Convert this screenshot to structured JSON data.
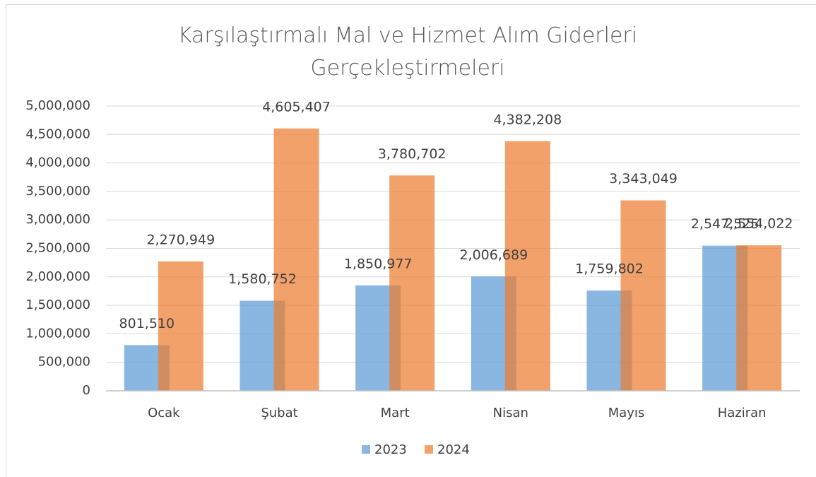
{
  "chart_data": {
    "type": "bar",
    "title": "Karşılaştırmalı Mal ve Hizmet Alım Giderleri Gerçekleştirmeleri",
    "categories": [
      "Ocak",
      "Şubat",
      "Mart",
      "Nisan",
      "Mayıs",
      "Haziran"
    ],
    "series": [
      {
        "name": "2023",
        "color": "#5b9bd5",
        "values": [
          801510,
          1580752,
          1850977,
          2006689,
          1759802,
          2547525
        ],
        "value_labels": [
          "801,510",
          "1,580,752",
          "1,850,977",
          "2,006,689",
          "1,759,802",
          "2,547,525"
        ]
      },
      {
        "name": "2024",
        "color": "#ed7d31",
        "values": [
          2270949,
          4605407,
          3780702,
          4382208,
          3343049,
          2554022
        ],
        "value_labels": [
          "2,270,949",
          "4,605,407",
          "3,780,702",
          "4,382,208",
          "3,343,049",
          "2,554,022"
        ]
      }
    ],
    "ylim": [
      0,
      5000000
    ],
    "yticks": [
      0,
      {
        "value": 500000,
        "label": "500,000"
      },
      {
        "value": 1000000,
        "label": "1,000,000"
      },
      {
        "value": 1500000,
        "label": "1,500,000"
      },
      {
        "value": 2000000,
        "label": "2,000,000"
      },
      {
        "value": 2500000,
        "label": "2,500,000"
      },
      {
        "value": 3000000,
        "label": "3,000,000"
      },
      {
        "value": 3500000,
        "label": "3,500,000"
      },
      {
        "value": 4000000,
        "label": "4,000,000"
      },
      {
        "value": 4500000,
        "label": "4,500,000"
      },
      {
        "value": 5000000,
        "label": "5,000,000"
      }
    ],
    "grid": true,
    "legend": "bottom"
  }
}
